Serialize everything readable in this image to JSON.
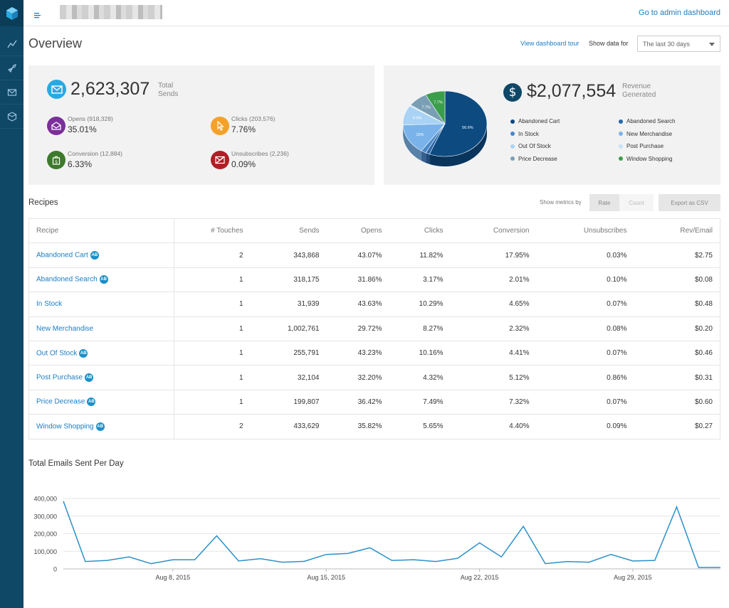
{
  "header": {
    "admin_link": "Go to admin dashboard"
  },
  "sidebar": {
    "items": [
      {
        "icon": "trend-line-icon"
      },
      {
        "icon": "rocket-icon"
      },
      {
        "icon": "envelope-icon"
      },
      {
        "icon": "cube-icon"
      }
    ]
  },
  "overview": {
    "title": "Overview",
    "tour_link": "View dashboard tour",
    "show_data_label": "Show data for",
    "period_value": "The last 30 days"
  },
  "sends_panel": {
    "total": "2,623,307",
    "total_caption_1": "Total",
    "total_caption_2": "Sends",
    "opens_label": "Opens (918,328)",
    "opens_value": "35.01%",
    "clicks_label": "Clicks (203,576)",
    "clicks_value": "7.76%",
    "conversion_label": "Conversion (12,884)",
    "conversion_value": "6.33%",
    "unsubscribes_label": "Unsubscribes (2,236)",
    "unsubscribes_value": "0.09%",
    "colors": {
      "sends": "#29a9e1",
      "opens": "#7b2f9a",
      "clicks": "#f4a12b",
      "conversion": "#3d7a2c",
      "unsubscribes": "#b01e24"
    }
  },
  "revenue_panel": {
    "total": "$2,077,554",
    "caption_1": "Revenue",
    "caption_2": "Generated",
    "legend": [
      {
        "label": "Abandoned Cart",
        "color": "#0d4a80"
      },
      {
        "label": "Abandoned Search",
        "color": "#2a67a8"
      },
      {
        "label": "In Stock",
        "color": "#4a86c7"
      },
      {
        "label": "New Merchandise",
        "color": "#79b3ea"
      },
      {
        "label": "Out Of Stock",
        "color": "#a9d2f4"
      },
      {
        "label": "Post Purchase",
        "color": "#c5e2f8"
      },
      {
        "label": "Price Decrease",
        "color": "#7a9fb5"
      },
      {
        "label": "Window Shopping",
        "color": "#3b9e4c"
      }
    ],
    "pie": [
      {
        "label": "56.6%",
        "value": 56.6,
        "color": "#0d4a80"
      },
      {
        "label": "",
        "value": 1.5,
        "color": "#2a67a8"
      },
      {
        "label": "",
        "value": 2.0,
        "color": "#4a86c7"
      },
      {
        "label": "15%",
        "value": 15.0,
        "color": "#79b3ea"
      },
      {
        "label": "9.9%",
        "value": 9.9,
        "color": "#a9d2f4"
      },
      {
        "label": "",
        "value": 0.6,
        "color": "#c5e2f8"
      },
      {
        "label": "7.7%",
        "value": 7.7,
        "color": "#7a9fb5"
      },
      {
        "label": "7.7%",
        "value": 7.7,
        "color": "#3b9e4c"
      }
    ]
  },
  "recipes": {
    "title": "Recipes",
    "metrics_label": "Show metrics by",
    "rate_label": "Rate",
    "count_label": "Count",
    "export_label": "Export as CSV",
    "columns": [
      "Recipe",
      "# Touches",
      "Sends",
      "Opens",
      "Clicks",
      "Conversion",
      "Unsubscribes",
      "Rev/Email"
    ],
    "ab_label": "AB",
    "rows": [
      {
        "name": "Abandoned Cart",
        "ab": true,
        "touches": "2",
        "sends": "343,868",
        "opens": "43.07%",
        "clicks": "11.82%",
        "conversion": "17.95%",
        "unsub": "0.03%",
        "rev": "$2.75"
      },
      {
        "name": "Abandoned Search",
        "ab": true,
        "touches": "1",
        "sends": "318,175",
        "opens": "31.86%",
        "clicks": "3.17%",
        "conversion": "2.01%",
        "unsub": "0.10%",
        "rev": "$0.08"
      },
      {
        "name": "In Stock",
        "ab": false,
        "touches": "1",
        "sends": "31,939",
        "opens": "43.63%",
        "clicks": "10.29%",
        "conversion": "4.65%",
        "unsub": "0.07%",
        "rev": "$0.48"
      },
      {
        "name": "New Merchandise",
        "ab": false,
        "touches": "1",
        "sends": "1,002,761",
        "opens": "29.72%",
        "clicks": "8.27%",
        "conversion": "2.32%",
        "unsub": "0.08%",
        "rev": "$0.20"
      },
      {
        "name": "Out Of Stock",
        "ab": true,
        "touches": "1",
        "sends": "255,791",
        "opens": "43.23%",
        "clicks": "10.16%",
        "conversion": "4.41%",
        "unsub": "0.07%",
        "rev": "$0.46"
      },
      {
        "name": "Post Purchase",
        "ab": true,
        "touches": "1",
        "sends": "32,104",
        "opens": "32.20%",
        "clicks": "4.32%",
        "conversion": "5.12%",
        "unsub": "0.86%",
        "rev": "$0.31"
      },
      {
        "name": "Price Decrease",
        "ab": true,
        "touches": "1",
        "sends": "199,807",
        "opens": "36.42%",
        "clicks": "7.49%",
        "conversion": "7.32%",
        "unsub": "0.07%",
        "rev": "$0.60"
      },
      {
        "name": "Window Shopping",
        "ab": true,
        "touches": "2",
        "sends": "433,629",
        "opens": "35.82%",
        "clicks": "5.65%",
        "conversion": "4.40%",
        "unsub": "0.09%",
        "rev": "$0.27"
      }
    ]
  },
  "emails_chart": {
    "title": "Total Emails Sent Per Day"
  },
  "chart_data": {
    "type": "line",
    "title": "Total Emails Sent Per Day",
    "xlabel": "",
    "ylabel": "",
    "ylim": [
      0,
      400000
    ],
    "yticks": [
      "0",
      "100,000",
      "200,000",
      "300,000",
      "400,000"
    ],
    "xticks": [
      {
        "label": "Aug 8, 2015",
        "date": "2015-08-08"
      },
      {
        "label": "Aug 15, 2015",
        "date": "2015-08-15"
      },
      {
        "label": "Aug 22, 2015",
        "date": "2015-08-22"
      },
      {
        "label": "Aug 29, 2015",
        "date": "2015-08-29"
      }
    ],
    "grid": true,
    "color": "#2b90c8",
    "series": [
      {
        "x": [
          "2015-08-03",
          "2015-08-04",
          "2015-08-05",
          "2015-08-06",
          "2015-08-07",
          "2015-08-08",
          "2015-08-09",
          "2015-08-10",
          "2015-08-11",
          "2015-08-12",
          "2015-08-13",
          "2015-08-14",
          "2015-08-15",
          "2015-08-16",
          "2015-08-17",
          "2015-08-18",
          "2015-08-19",
          "2015-08-20",
          "2015-08-21",
          "2015-08-22",
          "2015-08-23",
          "2015-08-24",
          "2015-08-25",
          "2015-08-26",
          "2015-08-27",
          "2015-08-28",
          "2015-08-29",
          "2015-08-30",
          "2015-08-31",
          "2015-09-01",
          "2015-09-02"
        ],
        "values": [
          385000,
          42000,
          48000,
          68000,
          30000,
          52000,
          52000,
          188000,
          45000,
          58000,
          38000,
          43000,
          82000,
          88000,
          120000,
          48000,
          52000,
          42000,
          60000,
          148000,
          68000,
          242000,
          30000,
          42000,
          38000,
          82000,
          45000,
          48000,
          352000,
          8000,
          8000
        ]
      }
    ]
  }
}
